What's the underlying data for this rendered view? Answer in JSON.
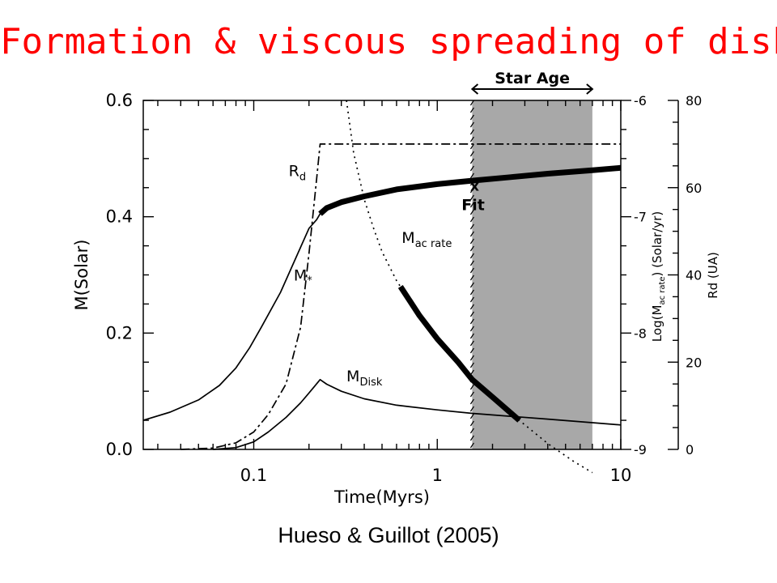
{
  "slide": {
    "title": "Formation & viscous spreading of disk",
    "caption": "Hueso & Guillot (2005)"
  },
  "chart_data": {
    "type": "line",
    "xscale": "log",
    "xlim": [
      0.025,
      10
    ],
    "xlabel": "Time(Myrs)",
    "xticks": [
      "0.1",
      "1",
      "10"
    ],
    "ylabel": "M(Solar)",
    "ylim": [
      0,
      0.6
    ],
    "yticks": [
      "0.0",
      "0.2",
      "0.4",
      "0.6"
    ],
    "right_axes": [
      {
        "label": "Log(M_ac rate) (Solar/yr)",
        "label_main": "Log(M",
        "label_sub": "ac rate",
        "label_end": ") (Solar/yr)",
        "range": [
          -9,
          -6
        ],
        "ticks": [
          "-9",
          "-8",
          "-7",
          "-6"
        ]
      },
      {
        "label": "Rd (UA)",
        "range": [
          0,
          80
        ],
        "ticks": [
          "0",
          "20",
          "40",
          "60",
          "80"
        ]
      }
    ],
    "shaded_region": {
      "label": "Star Age",
      "x": [
        1.55,
        7.0
      ],
      "color": "#a8a8a8"
    },
    "fit_marker": {
      "label": "Fit",
      "symbol": "x",
      "x": 1.6,
      "y": 0.445
    },
    "series": [
      {
        "name": "M*",
        "label_main": "M",
        "label_sub": "*",
        "axis": "left",
        "style": "solid",
        "x": [
          0.025,
          0.035,
          0.05,
          0.065,
          0.08,
          0.095,
          0.11,
          0.14,
          0.17,
          0.2,
          0.22,
          0.23,
          0.25,
          0.3,
          0.4,
          0.6,
          1.0,
          1.55,
          2.5,
          4.0,
          7.0,
          10.0
        ],
        "y": [
          0.05,
          0.064,
          0.085,
          0.11,
          0.14,
          0.175,
          0.21,
          0.27,
          0.33,
          0.38,
          0.395,
          0.405,
          0.415,
          0.425,
          0.435,
          0.447,
          0.456,
          0.462,
          0.468,
          0.474,
          0.48,
          0.484
        ]
      },
      {
        "name": "M_Disk",
        "label_main": "M",
        "label_sub": "Disk",
        "axis": "left",
        "style": "solid",
        "x": [
          0.06,
          0.08,
          0.1,
          0.12,
          0.15,
          0.18,
          0.21,
          0.23,
          0.25,
          0.3,
          0.4,
          0.6,
          1.0,
          1.55,
          2.5,
          4.0,
          7.0,
          10.0
        ],
        "y": [
          0.0,
          0.003,
          0.013,
          0.03,
          0.055,
          0.08,
          0.105,
          0.12,
          0.112,
          0.1,
          0.087,
          0.076,
          0.068,
          0.062,
          0.057,
          0.052,
          0.046,
          0.042
        ]
      },
      {
        "name": "M_ac rate",
        "label_main": "M",
        "label_sub": "ac rate",
        "axis": "right1",
        "style": "dotted",
        "x": [
          0.32,
          0.35,
          0.4,
          0.45,
          0.5,
          0.6,
          0.8,
          1.0,
          1.3,
          1.55,
          2.0,
          2.8,
          4.0,
          5.5,
          7.0
        ],
        "y": [
          -6.0,
          -6.45,
          -6.85,
          -7.1,
          -7.3,
          -7.55,
          -7.85,
          -8.05,
          -8.25,
          -8.4,
          -8.55,
          -8.75,
          -8.95,
          -9.1,
          -9.2
        ]
      },
      {
        "name": "R_d",
        "label_main": "R",
        "label_sub": "d",
        "axis": "right2",
        "style": "dashdot",
        "x": [
          0.04,
          0.06,
          0.08,
          0.1,
          0.12,
          0.15,
          0.18,
          0.2,
          0.22,
          0.23,
          0.3,
          1.0,
          10.0
        ],
        "y": [
          0.0,
          0.3,
          1.5,
          4.0,
          8.0,
          15.0,
          28.0,
          45.0,
          62.0,
          70.0,
          70.0,
          70.0,
          70.0
        ]
      }
    ],
    "highlight_segments": [
      {
        "series": "M*",
        "x": [
          0.23,
          0.25,
          0.3,
          0.4,
          0.6,
          1.0,
          1.55,
          2.5,
          4.0,
          7.0,
          10.0
        ],
        "y": [
          0.405,
          0.415,
          0.425,
          0.435,
          0.447,
          0.456,
          0.462,
          0.468,
          0.474,
          0.48,
          0.484
        ]
      },
      {
        "series": "M_ac rate",
        "x": [
          0.63,
          0.8,
          1.0,
          1.3,
          1.55,
          2.0,
          2.8
        ],
        "y": [
          -7.6,
          -7.85,
          -8.05,
          -8.25,
          -8.4,
          -8.55,
          -8.75
        ]
      }
    ]
  }
}
